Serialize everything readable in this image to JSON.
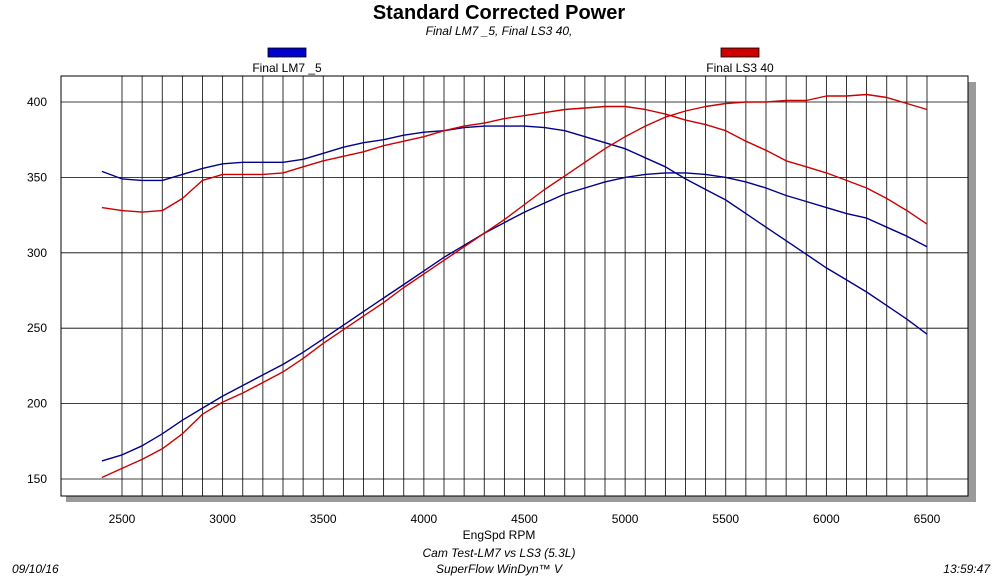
{
  "chart_data": {
    "type": "line",
    "title": "Standard Corrected Power",
    "subtitle": "Final LM7 _5, Final LS3 40,",
    "xlabel": "EngSpd RPM",
    "ylabel": "",
    "xlim": [
      2400,
      6500
    ],
    "ylim": [
      140,
      410
    ],
    "x_ticks": [
      2500,
      3000,
      3500,
      4000,
      4500,
      5000,
      5500,
      6000,
      6500
    ],
    "y_ticks": [
      150,
      200,
      250,
      300,
      350,
      400
    ],
    "x_minor_step": 100,
    "grid": true,
    "legend": [
      {
        "name": "Final LM7 _5",
        "color": "#0000cc"
      },
      {
        "name": "Final LS3 40",
        "color": "#cc0000"
      }
    ],
    "series": [
      {
        "name": "Final LM7 _5",
        "color": "#00008b",
        "curves": [
          {
            "x": [
              2400,
              2500,
              2600,
              2700,
              2800,
              2900,
              3000,
              3100,
              3200,
              3300,
              3400,
              3500,
              3600,
              3700,
              3800,
              3900,
              4000,
              4100,
              4200,
              4300,
              4400,
              4500,
              4600,
              4700,
              4800,
              4900,
              5000,
              5100,
              5200,
              5300,
              5400,
              5500,
              5600,
              5700,
              5800,
              5900,
              6000,
              6100,
              6200,
              6300,
              6400,
              6500
            ],
            "y": [
              354,
              349,
              348,
              348,
              352,
              356,
              359,
              360,
              360,
              360,
              362,
              366,
              370,
              373,
              375,
              378,
              380,
              381,
              383,
              384,
              384,
              384,
              383,
              381,
              377,
              373,
              369,
              363,
              357,
              349,
              342,
              335,
              326,
              317,
              308,
              299,
              290,
              282,
              274,
              265,
              256,
              246
            ]
          },
          {
            "x": [
              2400,
              2500,
              2600,
              2700,
              2800,
              2900,
              3000,
              3100,
              3200,
              3300,
              3400,
              3500,
              3600,
              3700,
              3800,
              3900,
              4000,
              4100,
              4200,
              4300,
              4400,
              4500,
              4600,
              4700,
              4800,
              4900,
              5000,
              5100,
              5200,
              5300,
              5400,
              5500,
              5600,
              5700,
              5800,
              5900,
              6000,
              6100,
              6200,
              6300,
              6400,
              6500
            ],
            "y": [
              162,
              166,
              172,
              180,
              189,
              197,
              205,
              212,
              219,
              226,
              234,
              243,
              252,
              261,
              270,
              279,
              288,
              297,
              305,
              313,
              320,
              327,
              333,
              339,
              343,
              347,
              350,
              352,
              353,
              353,
              352,
              350,
              347,
              343,
              338,
              334,
              330,
              326,
              323,
              317,
              311,
              304
            ]
          }
        ]
      },
      {
        "name": "Final LS3 40",
        "color": "#cc0000",
        "curves": [
          {
            "x": [
              2400,
              2500,
              2600,
              2700,
              2800,
              2900,
              3000,
              3100,
              3200,
              3300,
              3400,
              3500,
              3600,
              3700,
              3800,
              3900,
              4000,
              4100,
              4200,
              4300,
              4400,
              4500,
              4600,
              4700,
              4800,
              4900,
              5000,
              5100,
              5200,
              5300,
              5400,
              5500,
              5600,
              5700,
              5800,
              5900,
              6000,
              6100,
              6200,
              6300,
              6400,
              6500
            ],
            "y": [
              330,
              328,
              327,
              328,
              336,
              348,
              352,
              352,
              352,
              353,
              357,
              361,
              364,
              367,
              371,
              374,
              377,
              381,
              384,
              386,
              389,
              391,
              393,
              395,
              396,
              397,
              397,
              395,
              392,
              388,
              385,
              381,
              374,
              368,
              361,
              357,
              353,
              348,
              343,
              336,
              328,
              319
            ]
          },
          {
            "x": [
              2400,
              2500,
              2600,
              2700,
              2800,
              2900,
              3000,
              3100,
              3200,
              3300,
              3400,
              3500,
              3600,
              3700,
              3800,
              3900,
              4000,
              4100,
              4200,
              4300,
              4400,
              4500,
              4600,
              4700,
              4800,
              4900,
              5000,
              5100,
              5200,
              5300,
              5400,
              5500,
              5600,
              5700,
              5800,
              5900,
              6000,
              6100,
              6200,
              6300,
              6400,
              6500
            ],
            "y": [
              151,
              157,
              163,
              170,
              180,
              193,
              201,
              207,
              214,
              221,
              230,
              240,
              249,
              258,
              267,
              277,
              286,
              295,
              304,
              313,
              322,
              332,
              342,
              351,
              360,
              369,
              377,
              384,
              390,
              394,
              397,
              399,
              400,
              400,
              401,
              401,
              404,
              404,
              405,
              403,
              399,
              395
            ]
          }
        ]
      }
    ]
  },
  "footer": {
    "date": "09/10/16",
    "test_name": "Cam Test-LM7 vs LS3 (5.3L)",
    "software": "SuperFlow WinDyn™ V",
    "time": "13:59:47"
  }
}
